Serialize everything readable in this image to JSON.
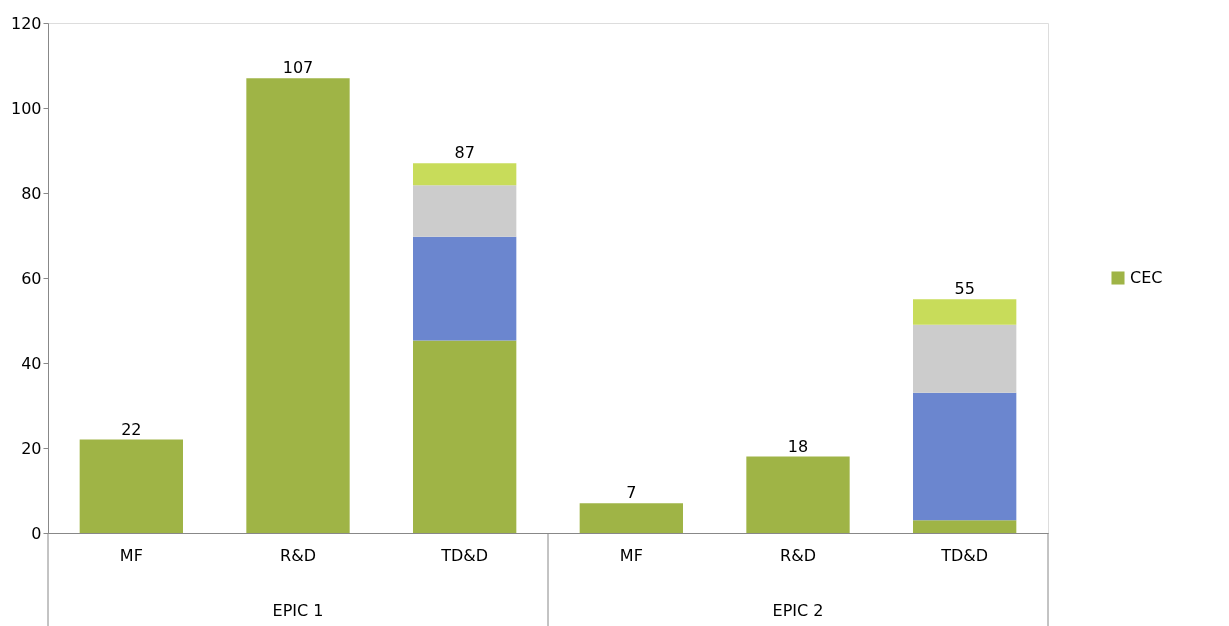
{
  "chart_data": {
    "type": "bar",
    "stacked": true,
    "categories": [
      "MF",
      "R&D",
      "TD&D",
      "MF",
      "R&D",
      "TD&D"
    ],
    "series": [
      {
        "name": "CEC",
        "color": "#9fb446",
        "values": [
          22,
          107,
          45.3,
          7,
          18,
          3
        ]
      },
      {
        "color": "#6b86cf",
        "values": [
          null,
          null,
          24.4,
          null,
          null,
          30
        ]
      },
      {
        "color": "#cccccc",
        "values": [
          null,
          null,
          12.1,
          null,
          null,
          16
        ]
      },
      {
        "color": "#c8dc5a",
        "values": [
          null,
          null,
          5.2,
          null,
          null,
          6
        ]
      }
    ],
    "totals": [
      "22",
      "107",
      "87",
      "7",
      "18",
      "55"
    ],
    "annotations": [
      "EPIC 1",
      "EPIC 2"
    ],
    "ylim": [
      0,
      120
    ],
    "yticks": [
      0,
      20,
      40,
      60,
      80,
      100,
      120
    ],
    "grid": false,
    "legend": "right"
  }
}
